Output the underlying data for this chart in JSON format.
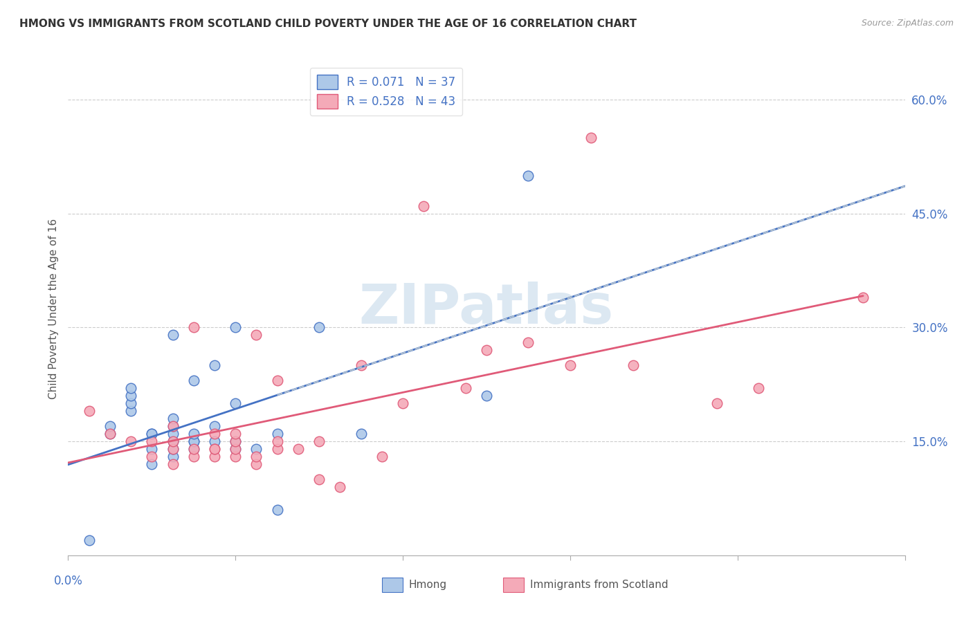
{
  "title": "HMONG VS IMMIGRANTS FROM SCOTLAND CHILD POVERTY UNDER THE AGE OF 16 CORRELATION CHART",
  "source": "Source: ZipAtlas.com",
  "ylabel": "Child Poverty Under the Age of 16",
  "xlim": [
    0.0,
    0.04
  ],
  "ylim": [
    0.0,
    0.65
  ],
  "yticks": [
    0.15,
    0.3,
    0.45,
    0.6
  ],
  "ytick_labels": [
    "15.0%",
    "30.0%",
    "45.0%",
    "60.0%"
  ],
  "xticks": [
    0.0,
    0.008,
    0.016,
    0.024,
    0.032,
    0.04
  ],
  "hmong_R": "0.071",
  "hmong_N": "37",
  "scotland_R": "0.528",
  "scotland_N": "43",
  "hmong_color": "#adc8e8",
  "hmong_line_color": "#4472c4",
  "scotland_color": "#f4aab8",
  "scotland_line_color": "#e05a78",
  "dashed_line_color": "#b0c0d0",
  "watermark_color": "#dce8f2",
  "legend_label_1": "Hmong",
  "legend_label_2": "Immigrants from Scotland",
  "hmong_x": [
    0.001,
    0.002,
    0.002,
    0.003,
    0.003,
    0.003,
    0.003,
    0.004,
    0.004,
    0.004,
    0.004,
    0.005,
    0.005,
    0.005,
    0.005,
    0.005,
    0.005,
    0.005,
    0.006,
    0.006,
    0.006,
    0.006,
    0.006,
    0.007,
    0.007,
    0.007,
    0.008,
    0.008,
    0.008,
    0.008,
    0.009,
    0.01,
    0.01,
    0.012,
    0.014,
    0.02,
    0.022
  ],
  "hmong_y": [
    0.02,
    0.16,
    0.17,
    0.19,
    0.2,
    0.21,
    0.22,
    0.12,
    0.14,
    0.16,
    0.16,
    0.13,
    0.14,
    0.15,
    0.16,
    0.17,
    0.18,
    0.29,
    0.14,
    0.15,
    0.15,
    0.16,
    0.23,
    0.15,
    0.17,
    0.25,
    0.14,
    0.15,
    0.2,
    0.3,
    0.14,
    0.06,
    0.16,
    0.3,
    0.16,
    0.21,
    0.5
  ],
  "scotland_x": [
    0.001,
    0.002,
    0.003,
    0.004,
    0.004,
    0.005,
    0.005,
    0.005,
    0.005,
    0.006,
    0.006,
    0.006,
    0.007,
    0.007,
    0.007,
    0.007,
    0.008,
    0.008,
    0.008,
    0.008,
    0.009,
    0.009,
    0.009,
    0.01,
    0.01,
    0.01,
    0.011,
    0.012,
    0.012,
    0.013,
    0.014,
    0.015,
    0.016,
    0.017,
    0.019,
    0.02,
    0.022,
    0.024,
    0.025,
    0.027,
    0.031,
    0.033,
    0.038
  ],
  "scotland_y": [
    0.19,
    0.16,
    0.15,
    0.13,
    0.15,
    0.12,
    0.14,
    0.15,
    0.17,
    0.13,
    0.14,
    0.3,
    0.13,
    0.14,
    0.14,
    0.16,
    0.13,
    0.14,
    0.15,
    0.16,
    0.12,
    0.13,
    0.29,
    0.14,
    0.15,
    0.23,
    0.14,
    0.1,
    0.15,
    0.09,
    0.25,
    0.13,
    0.2,
    0.46,
    0.22,
    0.27,
    0.28,
    0.25,
    0.55,
    0.25,
    0.2,
    0.22,
    0.34
  ]
}
